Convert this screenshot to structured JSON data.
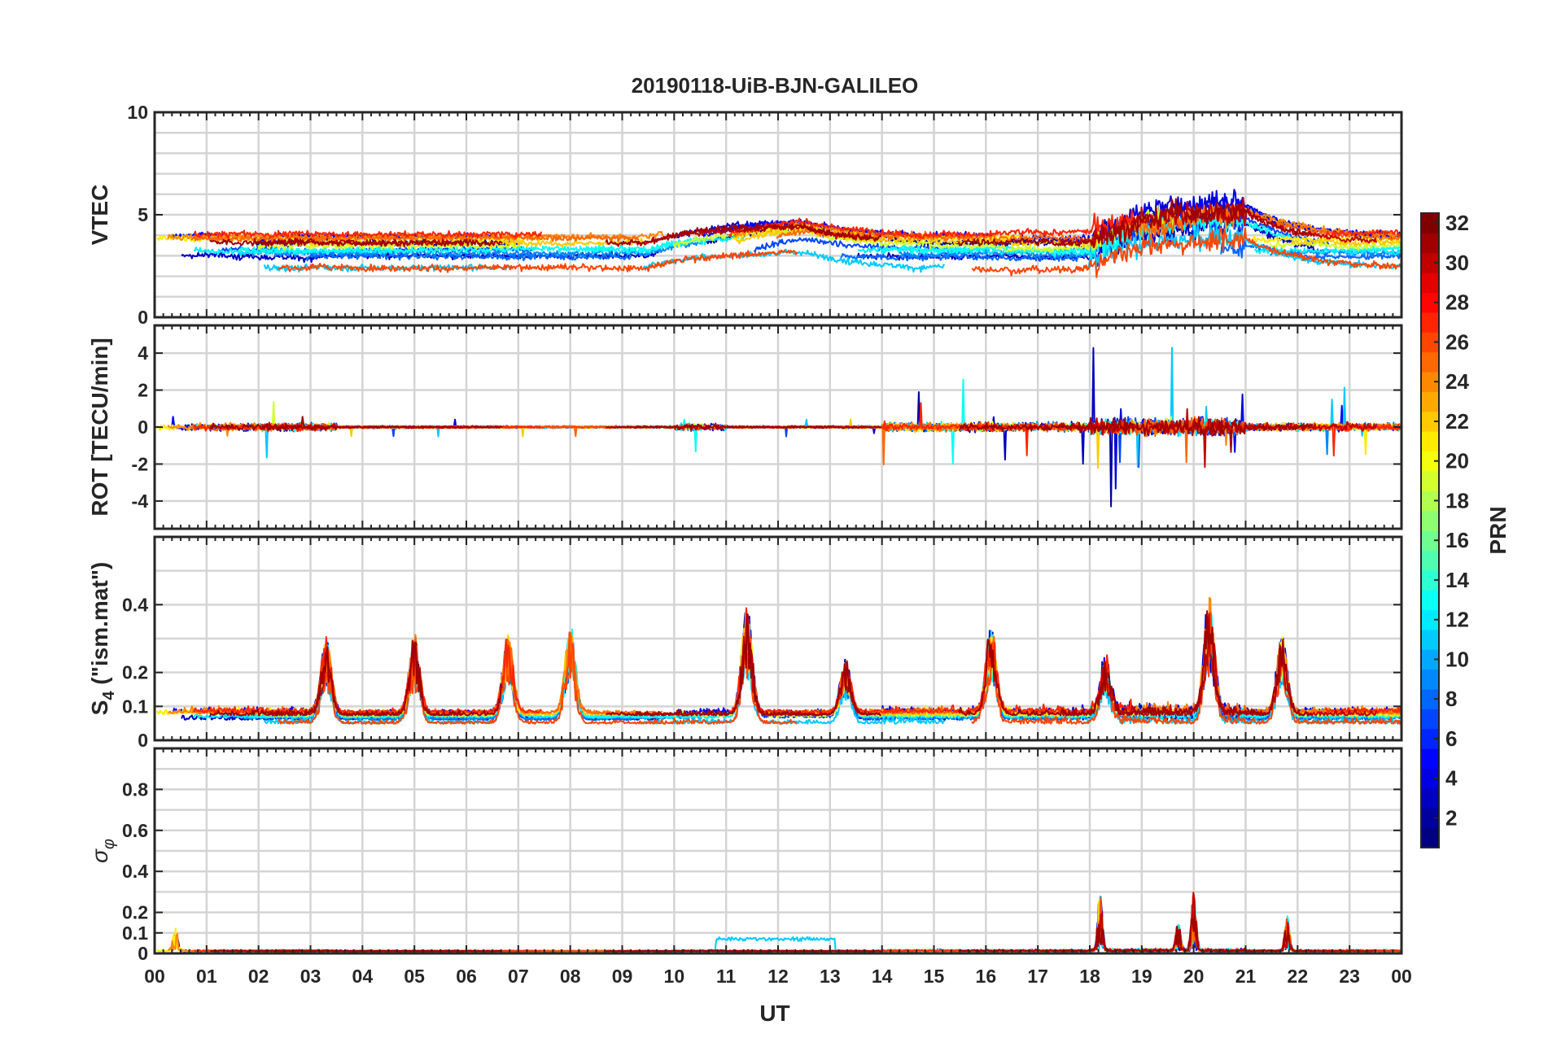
{
  "chart_data": {
    "type": "line",
    "title": "20190118-UiB-BJN-GALILEO",
    "xlabel": "UT",
    "xlim": [
      0,
      24
    ],
    "x_tick_labels": [
      "00",
      "01",
      "02",
      "03",
      "04",
      "05",
      "06",
      "07",
      "08",
      "09",
      "10",
      "11",
      "12",
      "13",
      "14",
      "15",
      "16",
      "17",
      "18",
      "19",
      "20",
      "21",
      "22",
      "23",
      "00"
    ],
    "grid": true,
    "colorbar": {
      "label": "PRN",
      "range": [
        1,
        32
      ],
      "colormap": "jet",
      "placement": "right",
      "tick_labels": [
        "2",
        "4",
        "6",
        "8",
        "10",
        "12",
        "14",
        "16",
        "18",
        "20",
        "22",
        "24",
        "26",
        "28",
        "30",
        "32"
      ],
      "ticks": [
        2,
        4,
        6,
        8,
        10,
        12,
        14,
        16,
        18,
        20,
        22,
        24,
        26,
        28,
        30,
        32
      ]
    },
    "series_prn": [
      2,
      3,
      4,
      5,
      7,
      8,
      9,
      11,
      12,
      13,
      19,
      21,
      22,
      24,
      25,
      26,
      27,
      30,
      31
    ],
    "panels": [
      {
        "id": "vtec",
        "ylabel": "VTEC",
        "ylim": [
          0,
          10
        ],
        "ticks": [
          0,
          5,
          10
        ],
        "tick_labels": [
          "0",
          "5",
          "10"
        ],
        "gridlines": [
          0,
          1,
          2,
          3,
          4,
          5,
          6,
          7,
          8,
          9,
          10
        ],
        "typical_level": 3,
        "noise_quiet": 0.3,
        "noise_active": 1.3
      },
      {
        "id": "rot",
        "ylabel": "ROT [TECU/min]",
        "ylim": [
          -5.5,
          5.5
        ],
        "ticks": [
          -4,
          -2,
          0,
          2,
          4
        ],
        "tick_labels": [
          "-4",
          "-2",
          "0",
          "2",
          "4"
        ],
        "gridlines": [
          -4,
          -2,
          0,
          2,
          4
        ],
        "typical_level": 0,
        "spike_max": 4.6
      },
      {
        "id": "s4",
        "ylabel": "S",
        "ylabel_subscript": "4",
        "ylabel_suffix": " (\"ism.mat\")",
        "ylim": [
          0,
          0.6
        ],
        "ticks": [
          0,
          0.1,
          0.2,
          0.4
        ],
        "tick_labels": [
          "0",
          "0.1",
          "0.2",
          "0.4"
        ],
        "gridlines": [
          0,
          0.1,
          0.2,
          0.3,
          0.4,
          0.5
        ],
        "typical_level": 0.06,
        "peaks": [
          {
            "x": 3.3,
            "y": 0.28
          },
          {
            "x": 5.0,
            "y": 0.29
          },
          {
            "x": 6.8,
            "y": 0.3
          },
          {
            "x": 8.0,
            "y": 0.34
          },
          {
            "x": 11.4,
            "y": 0.38
          },
          {
            "x": 13.3,
            "y": 0.22
          },
          {
            "x": 16.1,
            "y": 0.32
          },
          {
            "x": 18.3,
            "y": 0.22
          },
          {
            "x": 20.3,
            "y": 0.4
          },
          {
            "x": 21.7,
            "y": 0.29
          }
        ]
      },
      {
        "id": "sigma-phi",
        "ylabel": "σ",
        "ylabel_subscript": "φ",
        "ylim": [
          0,
          1
        ],
        "ticks": [
          0,
          0.1,
          0.2,
          0.4,
          0.6,
          0.8
        ],
        "tick_labels": [
          "0",
          "0.1",
          "0.2",
          "0.4",
          "0.6",
          "0.8"
        ],
        "gridlines": [
          0,
          0.1,
          0.2,
          0.3,
          0.4,
          0.5,
          0.6,
          0.7,
          0.8,
          0.9,
          1.0
        ],
        "typical_level": 0.01,
        "peaks": [
          {
            "x": 0.4,
            "y": 0.13
          },
          {
            "x": 18.2,
            "y": 0.29
          },
          {
            "x": 19.7,
            "y": 0.15
          },
          {
            "x": 20.0,
            "y": 0.29
          },
          {
            "x": 21.8,
            "y": 0.17
          }
        ]
      }
    ]
  }
}
